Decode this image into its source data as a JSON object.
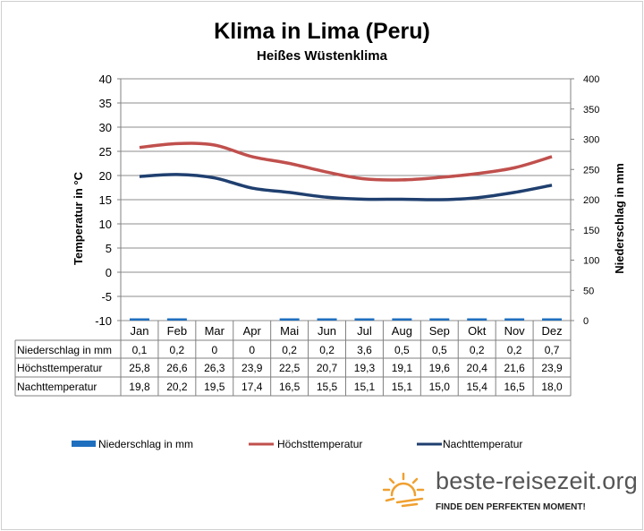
{
  "title": "Klima in Lima (Peru)",
  "subtitle": "Heißes Wüstenklima",
  "chart_data": {
    "type": "bar",
    "categories": [
      "Jan",
      "Feb",
      "Mar",
      "Apr",
      "Mai",
      "Jun",
      "Jul",
      "Aug",
      "Sep",
      "Okt",
      "Nov",
      "Dez"
    ],
    "series": [
      {
        "name": "Niederschlag in mm",
        "type": "bar",
        "axis": "right",
        "color": "#1f6fbf",
        "values": [
          0.1,
          0.2,
          0,
          0,
          0.2,
          0.2,
          3.6,
          0.5,
          0.5,
          0.2,
          0.2,
          0.7
        ],
        "labels": [
          "0,1",
          "0,2",
          "0",
          "0",
          "0,2",
          "0,2",
          "3,6",
          "0,5",
          "0,5",
          "0,2",
          "0,2",
          "0,7"
        ]
      },
      {
        "name": "Höchsttemperatur",
        "type": "line",
        "axis": "left",
        "color": "#c0504d",
        "values": [
          25.8,
          26.6,
          26.3,
          23.9,
          22.5,
          20.7,
          19.3,
          19.1,
          19.6,
          20.4,
          21.6,
          23.9
        ],
        "labels": [
          "25,8",
          "26,6",
          "26,3",
          "23,9",
          "22,5",
          "20,7",
          "19,3",
          "19,1",
          "19,6",
          "20,4",
          "21,6",
          "23,9"
        ]
      },
      {
        "name": "Nachttemperatur",
        "type": "line",
        "axis": "left",
        "color": "#1f3f6f",
        "values": [
          19.8,
          20.2,
          19.5,
          17.4,
          16.5,
          15.5,
          15.1,
          15.1,
          15.0,
          15.4,
          16.5,
          18.0
        ],
        "labels": [
          "19,8",
          "20,2",
          "19,5",
          "17,4",
          "16,5",
          "15,5",
          "15,1",
          "15,1",
          "15,0",
          "15,4",
          "16,5",
          "18,0"
        ]
      }
    ],
    "y_left": {
      "label": "Temperatur in °C",
      "min": -10,
      "max": 40,
      "step": 5,
      "ticks": [
        "40",
        "35",
        "30",
        "25",
        "20",
        "15",
        "10",
        "5",
        "0",
        "-5",
        "-10"
      ]
    },
    "y_right": {
      "label": "Niederschlag in mm",
      "min": 0,
      "max": 400,
      "step": 50,
      "ticks": [
        "400",
        "350",
        "300",
        "250",
        "200",
        "150",
        "100",
        "50",
        "0"
      ]
    },
    "grid": true,
    "legend_position": "bottom"
  },
  "brand": {
    "name": "beste-reisezeit.org",
    "slogan": "FINDE DEN PERFEKTEN MOMENT!",
    "sun_color": "#f0a030"
  }
}
